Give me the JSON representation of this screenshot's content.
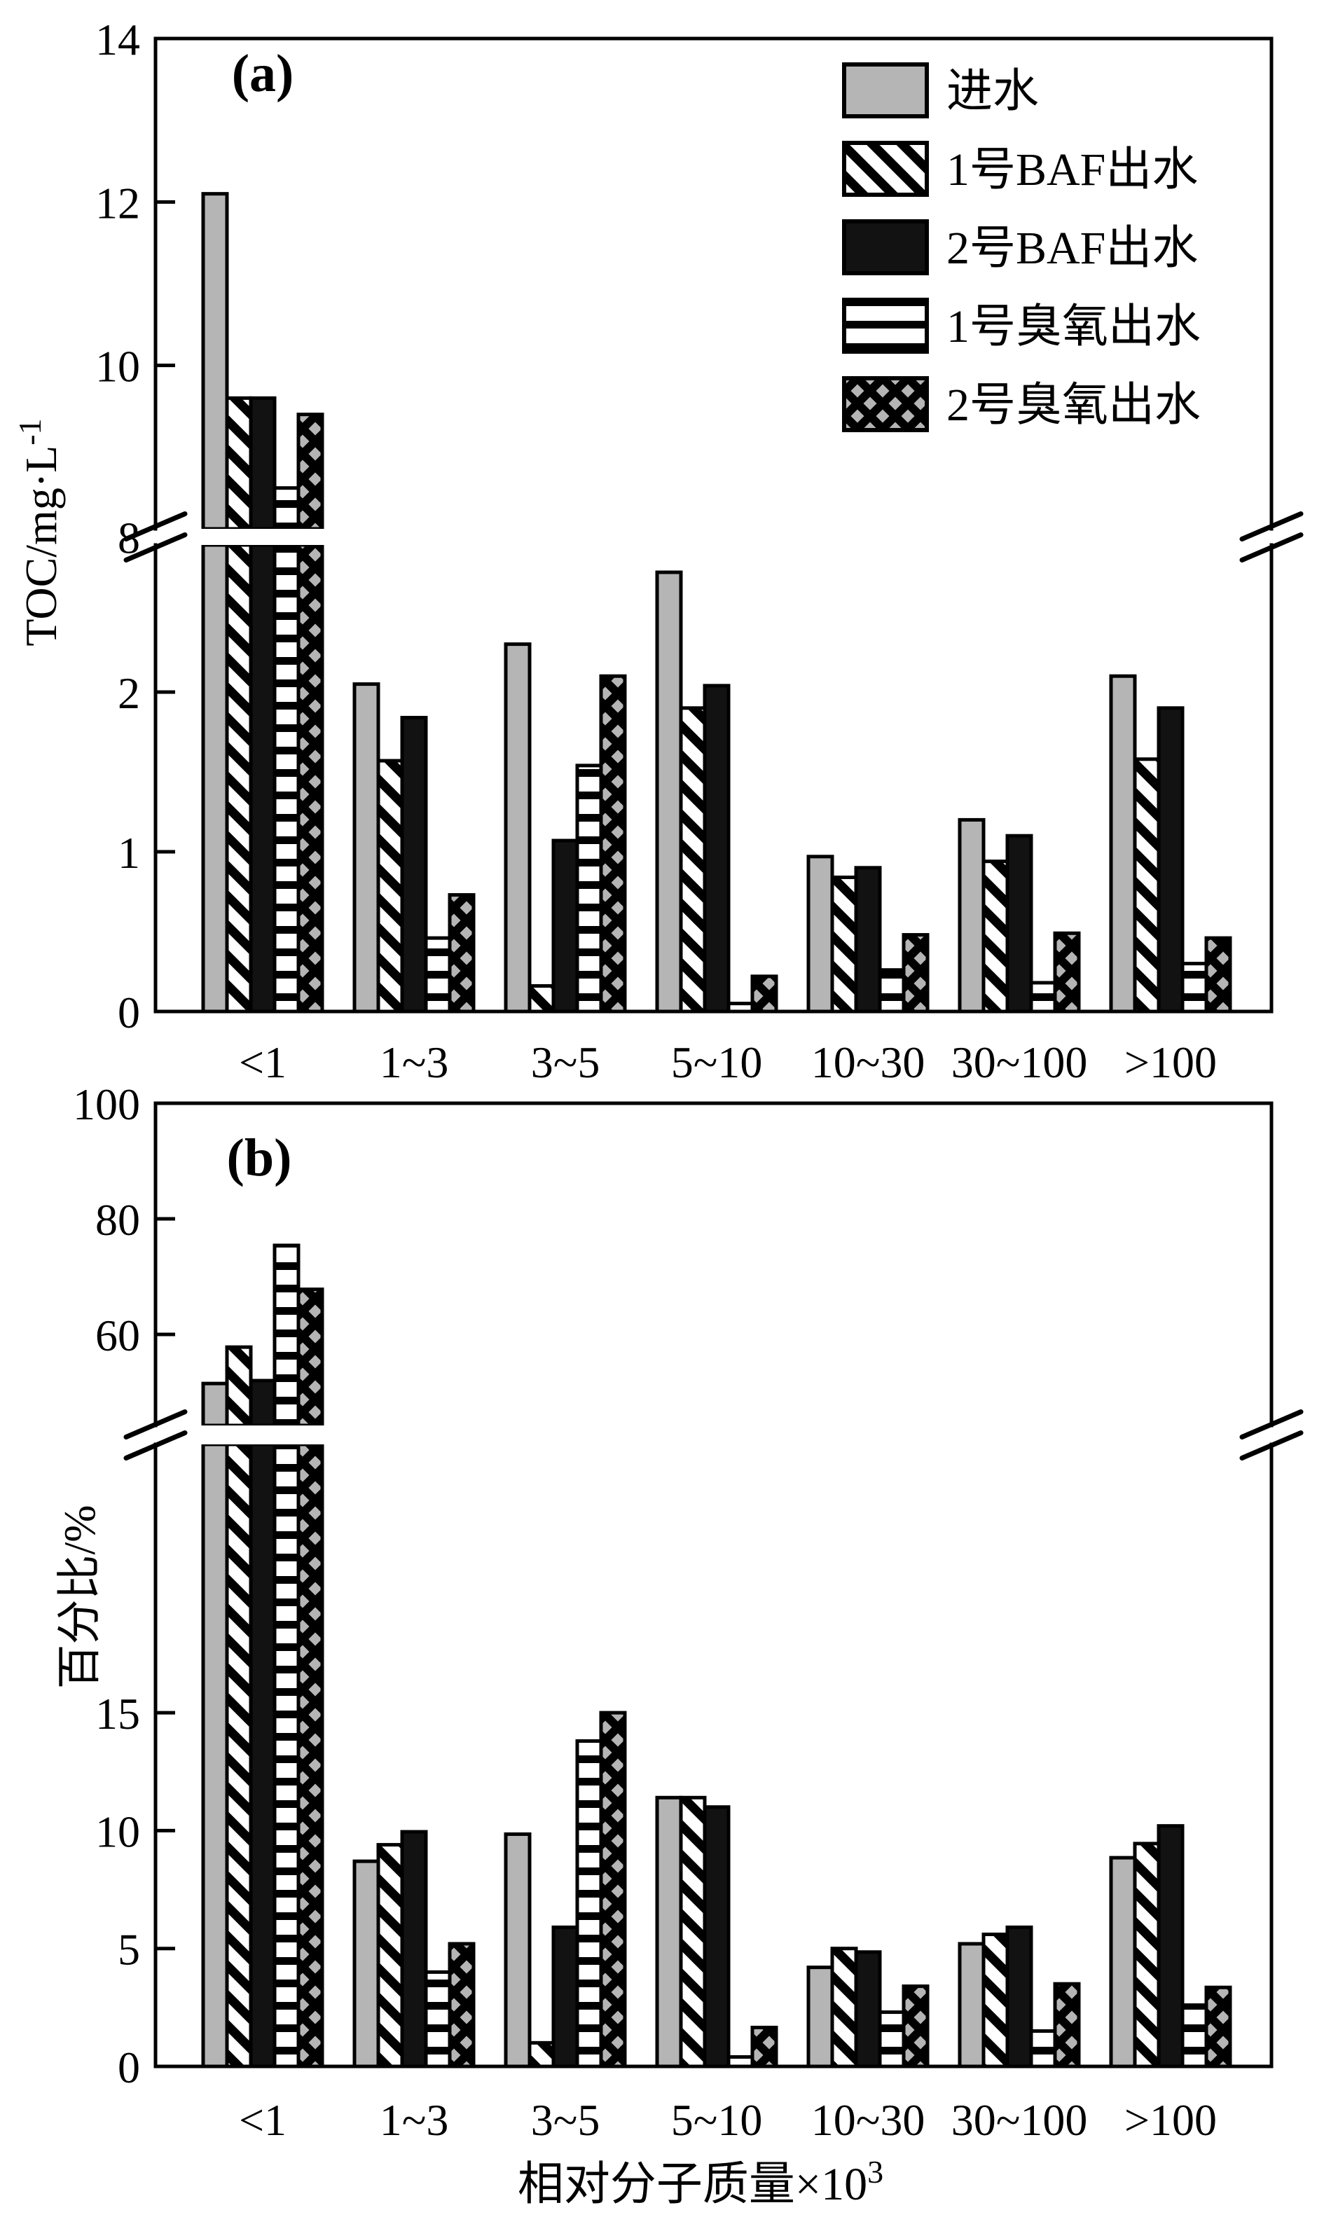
{
  "figure": {
    "panel_a_label": "(a)",
    "panel_b_label": "(b)",
    "ylabel_a": {
      "base": "TOC/mg·L",
      "sup": "-1"
    },
    "ylabel_b": "百分比/%",
    "xlabel": {
      "base": "相对分子质量×10",
      "sup": "3"
    },
    "colors": {
      "bar_gray": "#b5b5b5",
      "bar_black": "#121212",
      "line": "#000000",
      "background": "#ffffff"
    },
    "legend": {
      "items": [
        {
          "label": "进水",
          "pattern": "solid-gray"
        },
        {
          "label": "1号BAF出水",
          "pattern": "diagonal-hatch"
        },
        {
          "label": "2号BAF出水",
          "pattern": "solid-black"
        },
        {
          "label": "1号臭氧出水",
          "pattern": "horizontal-lines"
        },
        {
          "label": "2号臭氧出水",
          "pattern": "crosshatch"
        }
      ]
    }
  },
  "chart_data": [
    {
      "type": "bar",
      "panel": "a",
      "title": "(a)",
      "ylabel": "TOC/mg·L⁻¹",
      "xlabel": "相对分子质量×10³",
      "categories": [
        "<1",
        "1~3",
        "3~5",
        "5~10",
        "10~30",
        "30~100",
        ">100"
      ],
      "series": [
        {
          "name": "进水",
          "pattern": "solid-gray",
          "values": [
            12.1,
            2.05,
            2.3,
            2.75,
            0.97,
            1.2,
            2.1
          ]
        },
        {
          "name": "1号BAF出水",
          "pattern": "diagonal-hatch",
          "values": [
            9.6,
            1.57,
            0.16,
            1.9,
            0.84,
            0.94,
            1.58
          ]
        },
        {
          "name": "2号BAF出水",
          "pattern": "solid-black",
          "values": [
            9.6,
            1.84,
            1.07,
            2.04,
            0.9,
            1.1,
            1.9
          ]
        },
        {
          "name": "1号臭氧出水",
          "pattern": "horizontal-lines",
          "values": [
            8.5,
            0.46,
            1.54,
            0.05,
            0.26,
            0.18,
            0.3
          ]
        },
        {
          "name": "2号臭氧出水",
          "pattern": "crosshatch",
          "values": [
            9.4,
            0.73,
            2.1,
            0.22,
            0.48,
            0.49,
            0.46
          ]
        }
      ],
      "axis_break": {
        "lower_visible_range": [
          0,
          2.92
        ],
        "upper_visible_range": [
          8,
          14
        ]
      },
      "lower_ticks": [
        {
          "label": "0"
        },
        {
          "label": "1"
        },
        {
          "label": "2"
        }
      ],
      "upper_ticks": [
        {
          "label": "8",
          "tick": false
        },
        {
          "label": "10"
        },
        {
          "label": "12"
        },
        {
          "label": "14"
        }
      ],
      "grid": false,
      "legend_position": "top-right-inside"
    },
    {
      "type": "bar",
      "panel": "b",
      "title": "(b)",
      "ylabel": "百分比/%",
      "xlabel": "相对分子质量×10³",
      "categories": [
        "<1",
        "1~3",
        "3~5",
        "5~10",
        "10~30",
        "30~100",
        ">100"
      ],
      "series": [
        {
          "name": "进水",
          "pattern": "solid-gray",
          "values": [
            51.5,
            8.7,
            9.85,
            11.4,
            4.2,
            5.2,
            8.85
          ]
        },
        {
          "name": "1号BAF出水",
          "pattern": "diagonal-hatch",
          "values": [
            57.8,
            9.4,
            1.0,
            11.4,
            5.0,
            5.6,
            9.45
          ]
        },
        {
          "name": "2号BAF出水",
          "pattern": "solid-black",
          "values": [
            52.0,
            9.95,
            5.9,
            11.0,
            4.85,
            5.9,
            10.2
          ]
        },
        {
          "name": "1号臭氧出水",
          "pattern": "horizontal-lines",
          "values": [
            75.4,
            4.0,
            13.8,
            0.4,
            2.3,
            1.5,
            2.6
          ]
        },
        {
          "name": "2号臭氧出水",
          "pattern": "crosshatch",
          "values": [
            67.8,
            5.2,
            15.0,
            1.65,
            3.4,
            3.5,
            3.35
          ]
        }
      ],
      "axis_break": {
        "lower_visible_range": [
          0,
          26
        ],
        "upper_visible_range": [
          44,
          100
        ]
      },
      "lower_ticks": [
        {
          "label": "0"
        },
        {
          "label": "5"
        },
        {
          "label": "10"
        },
        {
          "label": "15"
        }
      ],
      "upper_ticks": [
        {
          "label": "60"
        },
        {
          "label": "80"
        },
        {
          "label": "100"
        }
      ],
      "grid": false,
      "legend_position": "none"
    }
  ]
}
